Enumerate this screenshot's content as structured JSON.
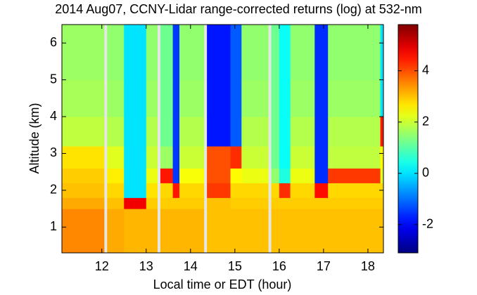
{
  "chart_data": {
    "type": "heatmap",
    "title": "2014 Aug07, CCNY-Lidar range-corrected returns (log) at 532-nm",
    "x_label": "Local time or EDT (hour)",
    "y_label": "Altitude (km)",
    "x_edges": [
      11.1,
      12.05,
      12.12,
      12.5,
      13.0,
      13.25,
      13.32,
      13.6,
      13.75,
      14.3,
      14.37,
      14.9,
      15.15,
      15.75,
      15.82,
      16.0,
      16.25,
      16.8,
      17.1,
      18.28,
      18.35
    ],
    "y_edges": [
      0.3,
      1.5,
      1.8,
      2.2,
      2.6,
      3.2,
      4.0,
      5.0,
      6.5
    ],
    "z": [
      [
        3.5,
        null,
        3.2,
        3.1,
        3.1,
        null,
        3.1,
        3.1,
        3.1,
        null,
        3.0,
        3.0,
        3.0,
        null,
        3.0,
        3.0,
        3.0,
        3.0,
        3.0,
        3.0
      ],
      [
        3.2,
        null,
        3.0,
        4.8,
        2.9,
        null,
        2.9,
        2.9,
        2.9,
        null,
        3.0,
        2.9,
        2.9,
        null,
        2.9,
        2.9,
        2.9,
        2.9,
        2.9,
        2.9
      ],
      [
        3.0,
        null,
        2.8,
        0.0,
        2.7,
        null,
        2.8,
        4.5,
        2.8,
        null,
        4.2,
        2.8,
        2.8,
        null,
        2.8,
        4.3,
        2.8,
        4.6,
        2.8,
        2.8
      ],
      [
        2.9,
        null,
        2.6,
        0.0,
        2.3,
        null,
        4.5,
        -1.5,
        2.4,
        null,
        4.0,
        2.5,
        2.3,
        null,
        1.5,
        0.5,
        2.3,
        -1.6,
        4.2,
        2.2
      ],
      [
        2.7,
        null,
        2.2,
        0.0,
        2.0,
        null,
        1.6,
        -1.5,
        2.0,
        null,
        4.0,
        4.3,
        2.0,
        null,
        1.2,
        0.3,
        2.0,
        -1.6,
        1.9,
        2.5
      ],
      [
        1.9,
        null,
        1.8,
        0.0,
        1.8,
        null,
        1.2,
        -1.5,
        1.8,
        null,
        -1.8,
        -1.2,
        1.8,
        null,
        1.2,
        0.3,
        1.8,
        -1.6,
        1.8,
        4.5
      ],
      [
        1.7,
        null,
        1.6,
        0.0,
        1.6,
        null,
        1.2,
        -1.5,
        1.6,
        null,
        -1.8,
        -1.2,
        1.6,
        null,
        1.2,
        0.3,
        1.6,
        -1.6,
        1.6,
        0.0
      ],
      [
        1.6,
        null,
        1.5,
        0.0,
        1.5,
        null,
        1.2,
        -1.5,
        1.5,
        null,
        -1.8,
        -1.2,
        1.5,
        null,
        1.2,
        0.3,
        1.5,
        -1.6,
        1.5,
        0.0
      ]
    ],
    "xlim": [
      11.1,
      18.35
    ],
    "xticks": [
      12,
      13,
      14,
      15,
      16,
      17,
      18
    ],
    "ylim": [
      0.3,
      6.5
    ],
    "yticks": [
      1,
      2,
      3,
      4,
      5,
      6
    ],
    "colormap": "jet",
    "clim": [
      -3.1,
      5.8
    ],
    "cticks": [
      -2,
      0,
      2,
      4
    ]
  }
}
